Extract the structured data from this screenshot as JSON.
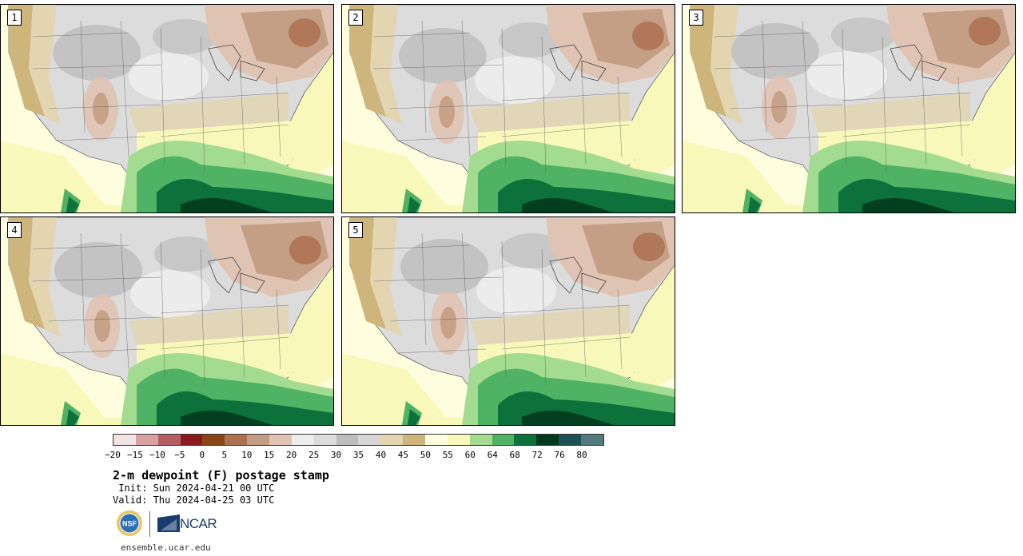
{
  "panels": [
    {
      "label": "1"
    },
    {
      "label": "2"
    },
    {
      "label": "3"
    },
    {
      "label": "4"
    },
    {
      "label": "5"
    }
  ],
  "colorbar": {
    "colors": [
      "#f3e4e4",
      "#d7a1a4",
      "#b65d62",
      "#8b1a1e",
      "#8a4516",
      "#ab7150",
      "#c39d83",
      "#dfc3b3",
      "#ededed",
      "#dcdcdc",
      "#bdbdbd",
      "#d6d6d6",
      "#e2d5b0",
      "#cdb57c",
      "#fefedf",
      "#f8f8bb",
      "#a3dc90",
      "#4fb264",
      "#0c713a",
      "#003a1c",
      "#1e5058",
      "#52797e"
    ],
    "tick_labels": [
      "−20",
      "−15",
      "−10",
      "−5",
      "0",
      "5",
      "10",
      "15",
      "20",
      "25",
      "30",
      "35",
      "40",
      "45",
      "50",
      "55",
      "60",
      "64",
      "68",
      "72",
      "76",
      "80"
    ]
  },
  "title": "2-m dewpoint (F) postage stamp",
  "init_text": " Init: Sun 2024-04-21 00 UTC",
  "valid_text": "Valid: Thu 2024-04-25 03 UTC",
  "logos": {
    "nsf": "NSF",
    "ncar": "NCAR",
    "nsf_icon": "nsf-seal",
    "ncar_icon": "ncar-logo"
  },
  "footer_url": "ensemble.ucar.edu"
}
